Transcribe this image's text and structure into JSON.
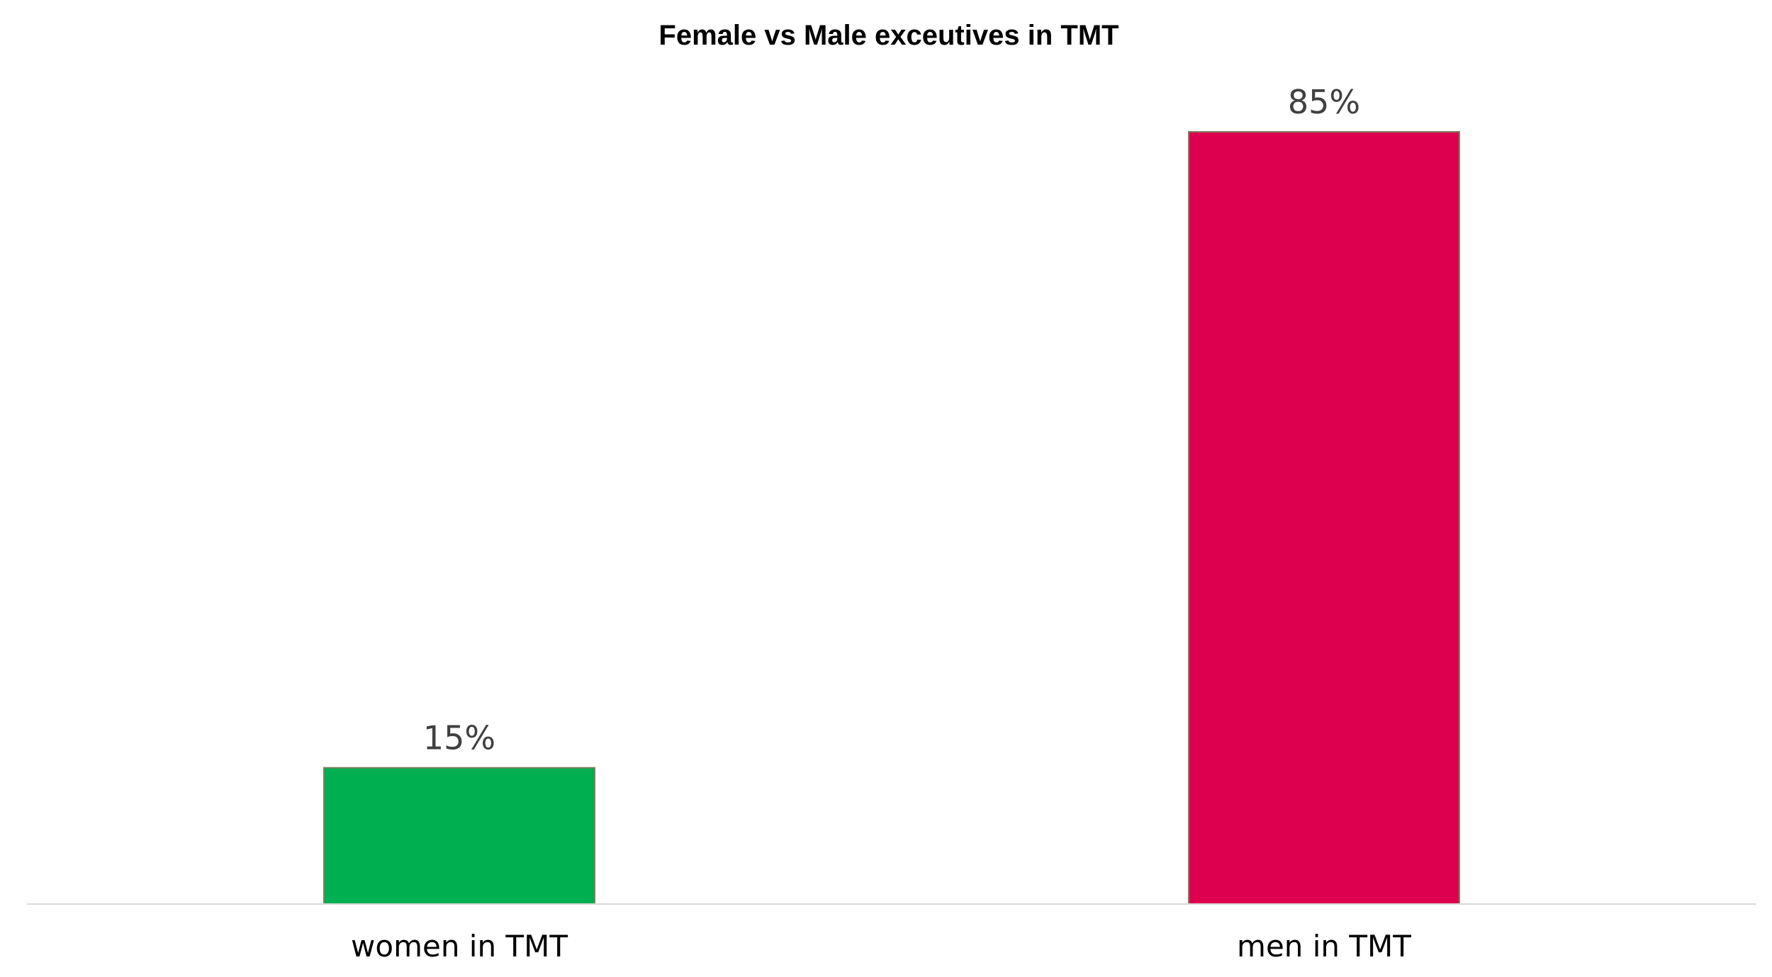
{
  "chart_data": {
    "type": "bar",
    "title": "Female vs Male exceutives in TMT",
    "xlabel": "",
    "ylabel": "",
    "categories": [
      "women in TMT",
      "men in TMT"
    ],
    "values": [
      15,
      85
    ],
    "value_labels": [
      "15%",
      "85%"
    ],
    "unit": "%",
    "ylim": [
      0,
      85
    ],
    "grid": false,
    "legend": "none",
    "bar_colors": [
      "#00AF50",
      "#DC004E"
    ],
    "bar_edge_color": "#808060",
    "axis_line_color": "#D9D9D9"
  }
}
